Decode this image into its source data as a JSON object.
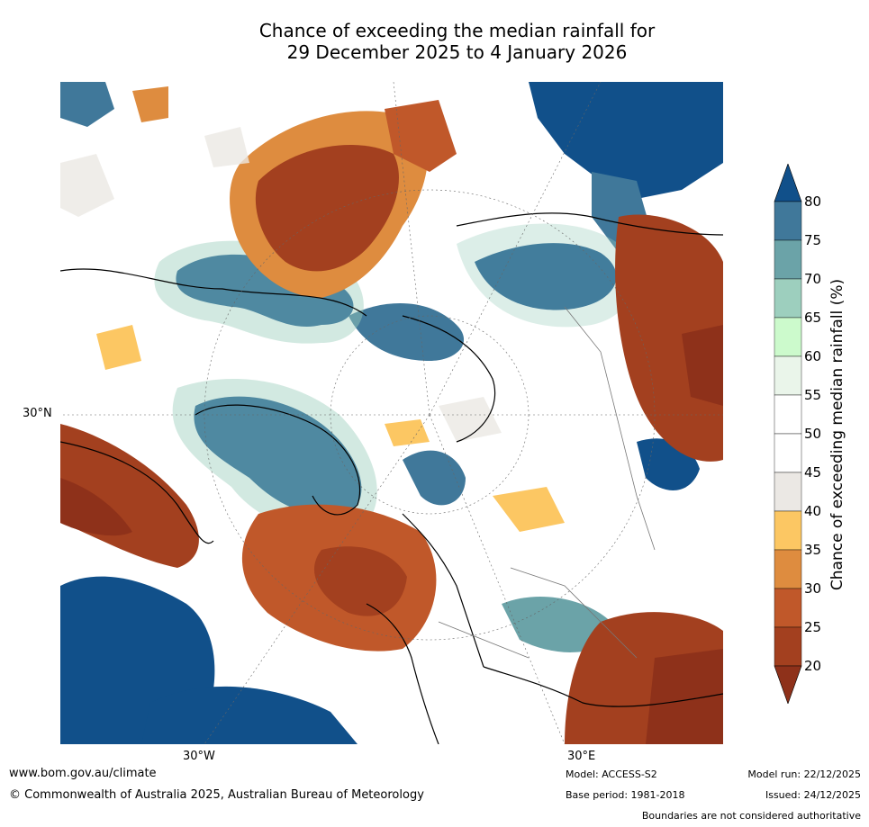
{
  "title_line1": "Chance of exceeding the median rainfall for",
  "title_line2": "29 December 2025 to 4 January 2026",
  "graticule_labels": {
    "lat_30n": "30°N",
    "lon_30w": "30°W",
    "lon_30e": "30°E"
  },
  "colorbar": {
    "label": "Chance of exceeding median rainfall (%)",
    "ticks": [
      "80",
      "75",
      "70",
      "65",
      "60",
      "55",
      "50",
      "45",
      "40",
      "35",
      "30",
      "25",
      "20"
    ],
    "colors": {
      "above80": "#11508A",
      "c75_80": "#40789A",
      "c70_75": "#6BA3A8",
      "c65_70": "#9DCFBE",
      "c60_65": "#CCFACC",
      "c55_60": "#EAF5EA",
      "c50_55": "#FFFFFF",
      "c45_50": "#FFFFFF",
      "c40_45": "#EBE8E4",
      "c35_40": "#FCC763",
      "c30_35": "#DE8C3F",
      "c25_30": "#C0582A",
      "c20_25": "#A3401F",
      "below20": "#8E311A"
    }
  },
  "footer": {
    "url": "www.bom.gov.au/climate",
    "copyright": "© Commonwealth of Australia 2025, Australian Bureau of Meteorology",
    "model": "Model: ACCESS-S2",
    "base_period": "Base period: 1981-2018",
    "model_run": "Model run: 22/12/2025",
    "issued": "Issued: 24/12/2025",
    "disclaimer": "Boundaries are not considered authoritative"
  }
}
